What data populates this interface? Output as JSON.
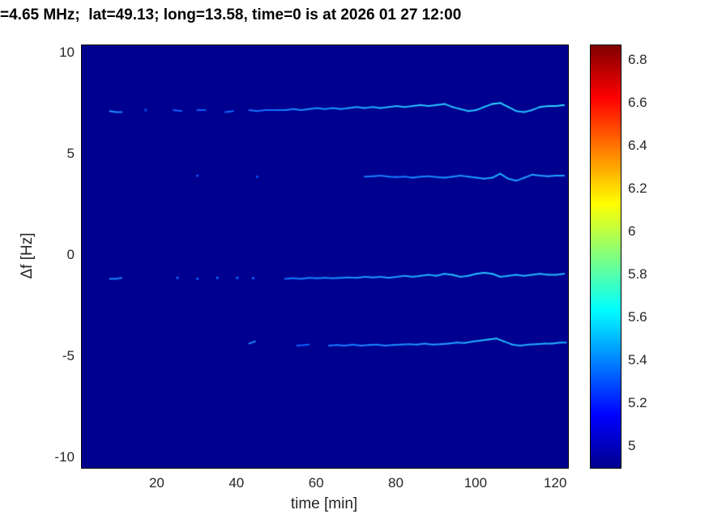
{
  "chart_data": {
    "type": "heatmap",
    "title": "=4.65 MHz;  lat=49.13; long=13.58, time=0 is at 2026 01 27 12:00",
    "xlabel": "time [min]",
    "ylabel": "Δf [Hz]",
    "xlim": [
      1,
      123
    ],
    "ylim": [
      -10.5,
      10.4
    ],
    "x_ticks": [
      20,
      40,
      60,
      80,
      100,
      120
    ],
    "y_ticks": [
      10,
      5,
      0,
      -5,
      -10
    ],
    "grid": false,
    "background_value": 5.0,
    "background_color": "#00008f",
    "colorbar": {
      "min": 4.9,
      "max": 6.87,
      "ticks": [
        6.8,
        6.6,
        6.4,
        6.2,
        6,
        5.8,
        5.6,
        5.4,
        5.2,
        5
      ],
      "colormap": "jet",
      "stops": [
        {
          "frac": 0.0,
          "color": "#00008f"
        },
        {
          "frac": 0.125,
          "color": "#0000ff"
        },
        {
          "frac": 0.375,
          "color": "#00ffff"
        },
        {
          "frac": 0.625,
          "color": "#ffff00"
        },
        {
          "frac": 0.875,
          "color": "#ff0000"
        },
        {
          "frac": 1.0,
          "color": "#800000"
        }
      ]
    },
    "traces": [
      {
        "name": "doppler-trace-plus7",
        "base_hz": 7.2,
        "points": [
          [
            8,
            7.15,
            0.55
          ],
          [
            9.5,
            7.1,
            0.5
          ],
          [
            11,
            7.1,
            0.45
          ],
          [
            17,
            7.2,
            0.2
          ],
          [
            24,
            7.2,
            0.3
          ],
          [
            26,
            7.15,
            0.25
          ],
          [
            30,
            7.2,
            0.3
          ],
          [
            32,
            7.2,
            0.3
          ],
          [
            37,
            7.1,
            0.35
          ],
          [
            39,
            7.15,
            0.3
          ],
          [
            43,
            7.2,
            0.4
          ],
          [
            45,
            7.15,
            0.35
          ],
          [
            47,
            7.2,
            0.35
          ],
          [
            50,
            7.2,
            0.4
          ],
          [
            52,
            7.2,
            0.45
          ],
          [
            54,
            7.25,
            0.5
          ],
          [
            56,
            7.2,
            0.5
          ],
          [
            58,
            7.25,
            0.5
          ],
          [
            60,
            7.3,
            0.55
          ],
          [
            62,
            7.25,
            0.5
          ],
          [
            64,
            7.3,
            0.55
          ],
          [
            66,
            7.25,
            0.6
          ],
          [
            68,
            7.3,
            0.6
          ],
          [
            70,
            7.35,
            0.65
          ],
          [
            72,
            7.3,
            0.6
          ],
          [
            74,
            7.35,
            0.65
          ],
          [
            76,
            7.3,
            0.7
          ],
          [
            78,
            7.35,
            0.7
          ],
          [
            80,
            7.4,
            0.75
          ],
          [
            82,
            7.35,
            0.7
          ],
          [
            84,
            7.4,
            0.75
          ],
          [
            86,
            7.45,
            0.8
          ],
          [
            88,
            7.4,
            0.75
          ],
          [
            90,
            7.45,
            0.8
          ],
          [
            92,
            7.5,
            0.8
          ],
          [
            94,
            7.35,
            0.75
          ],
          [
            96,
            7.25,
            0.7
          ],
          [
            98,
            7.15,
            0.75
          ],
          [
            100,
            7.2,
            0.8
          ],
          [
            102,
            7.35,
            0.8
          ],
          [
            104,
            7.5,
            0.85
          ],
          [
            106,
            7.55,
            0.9
          ],
          [
            108,
            7.35,
            0.8
          ],
          [
            110,
            7.15,
            0.75
          ],
          [
            112,
            7.1,
            0.7
          ],
          [
            114,
            7.2,
            0.75
          ],
          [
            116,
            7.35,
            0.8
          ],
          [
            118,
            7.4,
            0.85
          ],
          [
            120,
            7.4,
            0.9
          ],
          [
            122,
            7.45,
            0.85
          ]
        ]
      },
      {
        "name": "doppler-trace-plus4",
        "base_hz": 3.9,
        "points": [
          [
            30,
            3.95,
            0.2
          ],
          [
            45,
            3.9,
            0.2
          ],
          [
            72,
            3.9,
            0.45
          ],
          [
            74,
            3.92,
            0.4
          ],
          [
            76,
            3.95,
            0.45
          ],
          [
            78,
            3.9,
            0.4
          ],
          [
            80,
            3.88,
            0.45
          ],
          [
            82,
            3.9,
            0.4
          ],
          [
            84,
            3.85,
            0.45
          ],
          [
            86,
            3.9,
            0.5
          ],
          [
            88,
            3.92,
            0.45
          ],
          [
            90,
            3.88,
            0.5
          ],
          [
            92,
            3.85,
            0.5
          ],
          [
            94,
            3.9,
            0.55
          ],
          [
            96,
            3.95,
            0.5
          ],
          [
            98,
            3.9,
            0.55
          ],
          [
            100,
            3.85,
            0.6
          ],
          [
            102,
            3.8,
            0.6
          ],
          [
            104,
            3.85,
            0.65
          ],
          [
            106,
            4.05,
            0.7
          ],
          [
            108,
            3.8,
            0.6
          ],
          [
            110,
            3.7,
            0.6
          ],
          [
            112,
            3.85,
            0.6
          ],
          [
            114,
            4.0,
            0.65
          ],
          [
            116,
            3.95,
            0.6
          ],
          [
            118,
            3.92,
            0.6
          ],
          [
            120,
            3.95,
            0.65
          ],
          [
            122,
            3.95,
            0.6
          ]
        ]
      },
      {
        "name": "doppler-trace-minus1",
        "base_hz": -1.1,
        "points": [
          [
            8,
            -1.15,
            0.5
          ],
          [
            9.5,
            -1.15,
            0.45
          ],
          [
            11,
            -1.1,
            0.4
          ],
          [
            25,
            -1.1,
            0.25
          ],
          [
            30,
            -1.15,
            0.25
          ],
          [
            35,
            -1.1,
            0.3
          ],
          [
            40,
            -1.1,
            0.3
          ],
          [
            44,
            -1.12,
            0.3
          ],
          [
            52,
            -1.15,
            0.4
          ],
          [
            54,
            -1.12,
            0.4
          ],
          [
            56,
            -1.15,
            0.45
          ],
          [
            58,
            -1.1,
            0.45
          ],
          [
            60,
            -1.12,
            0.5
          ],
          [
            62,
            -1.1,
            0.5
          ],
          [
            64,
            -1.12,
            0.5
          ],
          [
            66,
            -1.1,
            0.55
          ],
          [
            68,
            -1.08,
            0.5
          ],
          [
            70,
            -1.1,
            0.55
          ],
          [
            72,
            -1.05,
            0.6
          ],
          [
            74,
            -1.08,
            0.55
          ],
          [
            76,
            -1.05,
            0.6
          ],
          [
            78,
            -1.1,
            0.6
          ],
          [
            80,
            -1.05,
            0.6
          ],
          [
            82,
            -1.0,
            0.6
          ],
          [
            84,
            -1.05,
            0.65
          ],
          [
            86,
            -1.0,
            0.65
          ],
          [
            88,
            -0.95,
            0.7
          ],
          [
            90,
            -1.0,
            0.65
          ],
          [
            92,
            -0.9,
            0.7
          ],
          [
            94,
            -0.95,
            0.75
          ],
          [
            96,
            -1.05,
            0.7
          ],
          [
            98,
            -1.0,
            0.7
          ],
          [
            100,
            -0.9,
            0.75
          ],
          [
            102,
            -0.85,
            0.8
          ],
          [
            104,
            -0.9,
            0.75
          ],
          [
            106,
            -1.05,
            0.7
          ],
          [
            108,
            -1.0,
            0.7
          ],
          [
            110,
            -0.95,
            0.7
          ],
          [
            112,
            -1.0,
            0.7
          ],
          [
            114,
            -0.95,
            0.7
          ],
          [
            116,
            -0.9,
            0.75
          ],
          [
            118,
            -0.95,
            0.7
          ],
          [
            120,
            -0.95,
            0.75
          ],
          [
            122,
            -0.9,
            0.7
          ]
        ]
      },
      {
        "name": "doppler-trace-minus4",
        "base_hz": -4.4,
        "points": [
          [
            43,
            -4.35,
            0.5
          ],
          [
            44.5,
            -4.25,
            0.55
          ],
          [
            55,
            -4.45,
            0.25
          ],
          [
            58,
            -4.4,
            0.3
          ],
          [
            63,
            -4.45,
            0.4
          ],
          [
            65,
            -4.42,
            0.4
          ],
          [
            67,
            -4.45,
            0.45
          ],
          [
            69,
            -4.4,
            0.4
          ],
          [
            71,
            -4.45,
            0.45
          ],
          [
            73,
            -4.42,
            0.45
          ],
          [
            75,
            -4.4,
            0.5
          ],
          [
            77,
            -4.45,
            0.45
          ],
          [
            79,
            -4.42,
            0.5
          ],
          [
            81,
            -4.4,
            0.5
          ],
          [
            83,
            -4.38,
            0.5
          ],
          [
            85,
            -4.4,
            0.55
          ],
          [
            87,
            -4.35,
            0.55
          ],
          [
            89,
            -4.4,
            0.55
          ],
          [
            91,
            -4.38,
            0.6
          ],
          [
            93,
            -4.35,
            0.6
          ],
          [
            95,
            -4.3,
            0.6
          ],
          [
            97,
            -4.32,
            0.65
          ],
          [
            99,
            -4.25,
            0.65
          ],
          [
            101,
            -4.2,
            0.7
          ],
          [
            103,
            -4.15,
            0.75
          ],
          [
            105,
            -4.1,
            0.8
          ],
          [
            107,
            -4.25,
            0.7
          ],
          [
            109,
            -4.4,
            0.65
          ],
          [
            111,
            -4.45,
            0.65
          ],
          [
            113,
            -4.4,
            0.65
          ],
          [
            115,
            -4.38,
            0.65
          ],
          [
            117,
            -4.35,
            0.7
          ],
          [
            119,
            -4.35,
            0.7
          ],
          [
            121,
            -4.3,
            0.7
          ],
          [
            122.5,
            -4.3,
            0.65
          ]
        ]
      }
    ]
  }
}
